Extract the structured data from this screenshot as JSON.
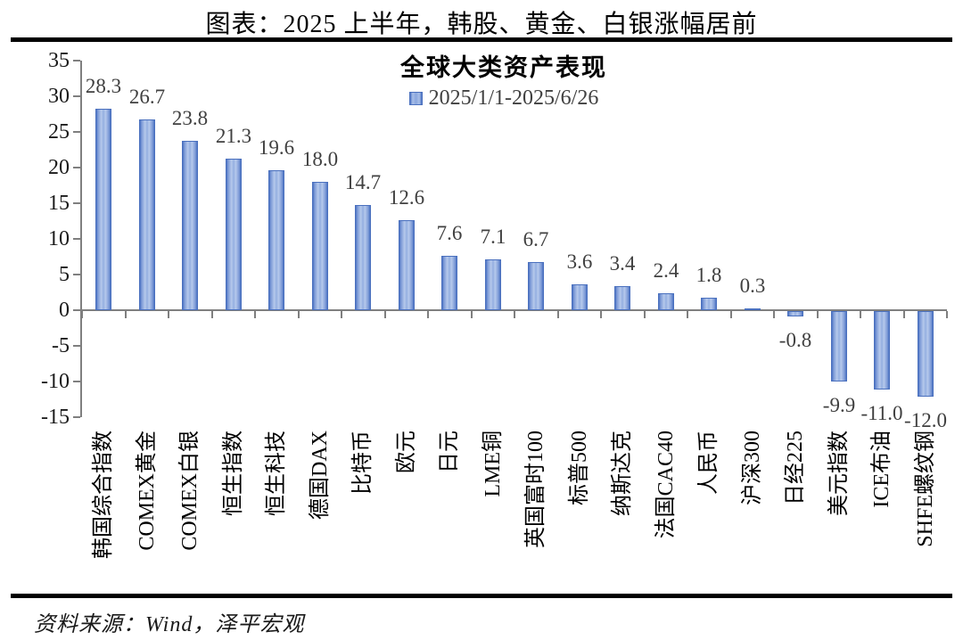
{
  "header": {
    "title": "图表：2025 上半年，韩股、黄金、白银涨幅居前"
  },
  "footer": {
    "source": "资料来源：Wind，泽平宏观"
  },
  "chart_data": {
    "type": "bar",
    "title": "全球大类资产表现",
    "legend": {
      "label": "2025/1/1-2025/6/26",
      "position": "top-center"
    },
    "categories": [
      "韩国综合指数",
      "COMEX黄金",
      "COMEX白银",
      "恒生指数",
      "恒生科技",
      "德国DAX",
      "比特币",
      "欧元",
      "日元",
      "LME铜",
      "英国富时100",
      "标普500",
      "纳斯达克",
      "法国CAC40",
      "人民币",
      "沪深300",
      "日经225",
      "美元指数",
      "ICE布油",
      "SHFE螺纹钢"
    ],
    "values": [
      28.3,
      26.7,
      23.8,
      21.3,
      19.6,
      18.0,
      14.7,
      12.6,
      7.6,
      7.1,
      6.7,
      3.6,
      3.4,
      2.4,
      1.8,
      0.3,
      -0.8,
      -9.9,
      -11.0,
      -12.0
    ],
    "value_labels": [
      "28.3",
      "26.7",
      "23.8",
      "21.3",
      "19.6",
      "18.0",
      "14.7",
      "12.6",
      "7.6",
      "7.1",
      "6.7",
      "3.6",
      "3.4",
      "2.4",
      "1.8",
      "0.3",
      "-0.8",
      "-9.9",
      "-11.0",
      "-12.0"
    ],
    "xlabel": "",
    "ylabel": "",
    "ylim": [
      -15,
      35
    ],
    "ytick_step": 5,
    "grid": false,
    "legend_position": "top",
    "colors": {
      "bar_edge": "#4c73c3",
      "bar_light": "#b6c9ec",
      "axis": "#7f7f7f",
      "value_label": "#404040",
      "legend_text": "#404040",
      "text": "#000000"
    }
  }
}
